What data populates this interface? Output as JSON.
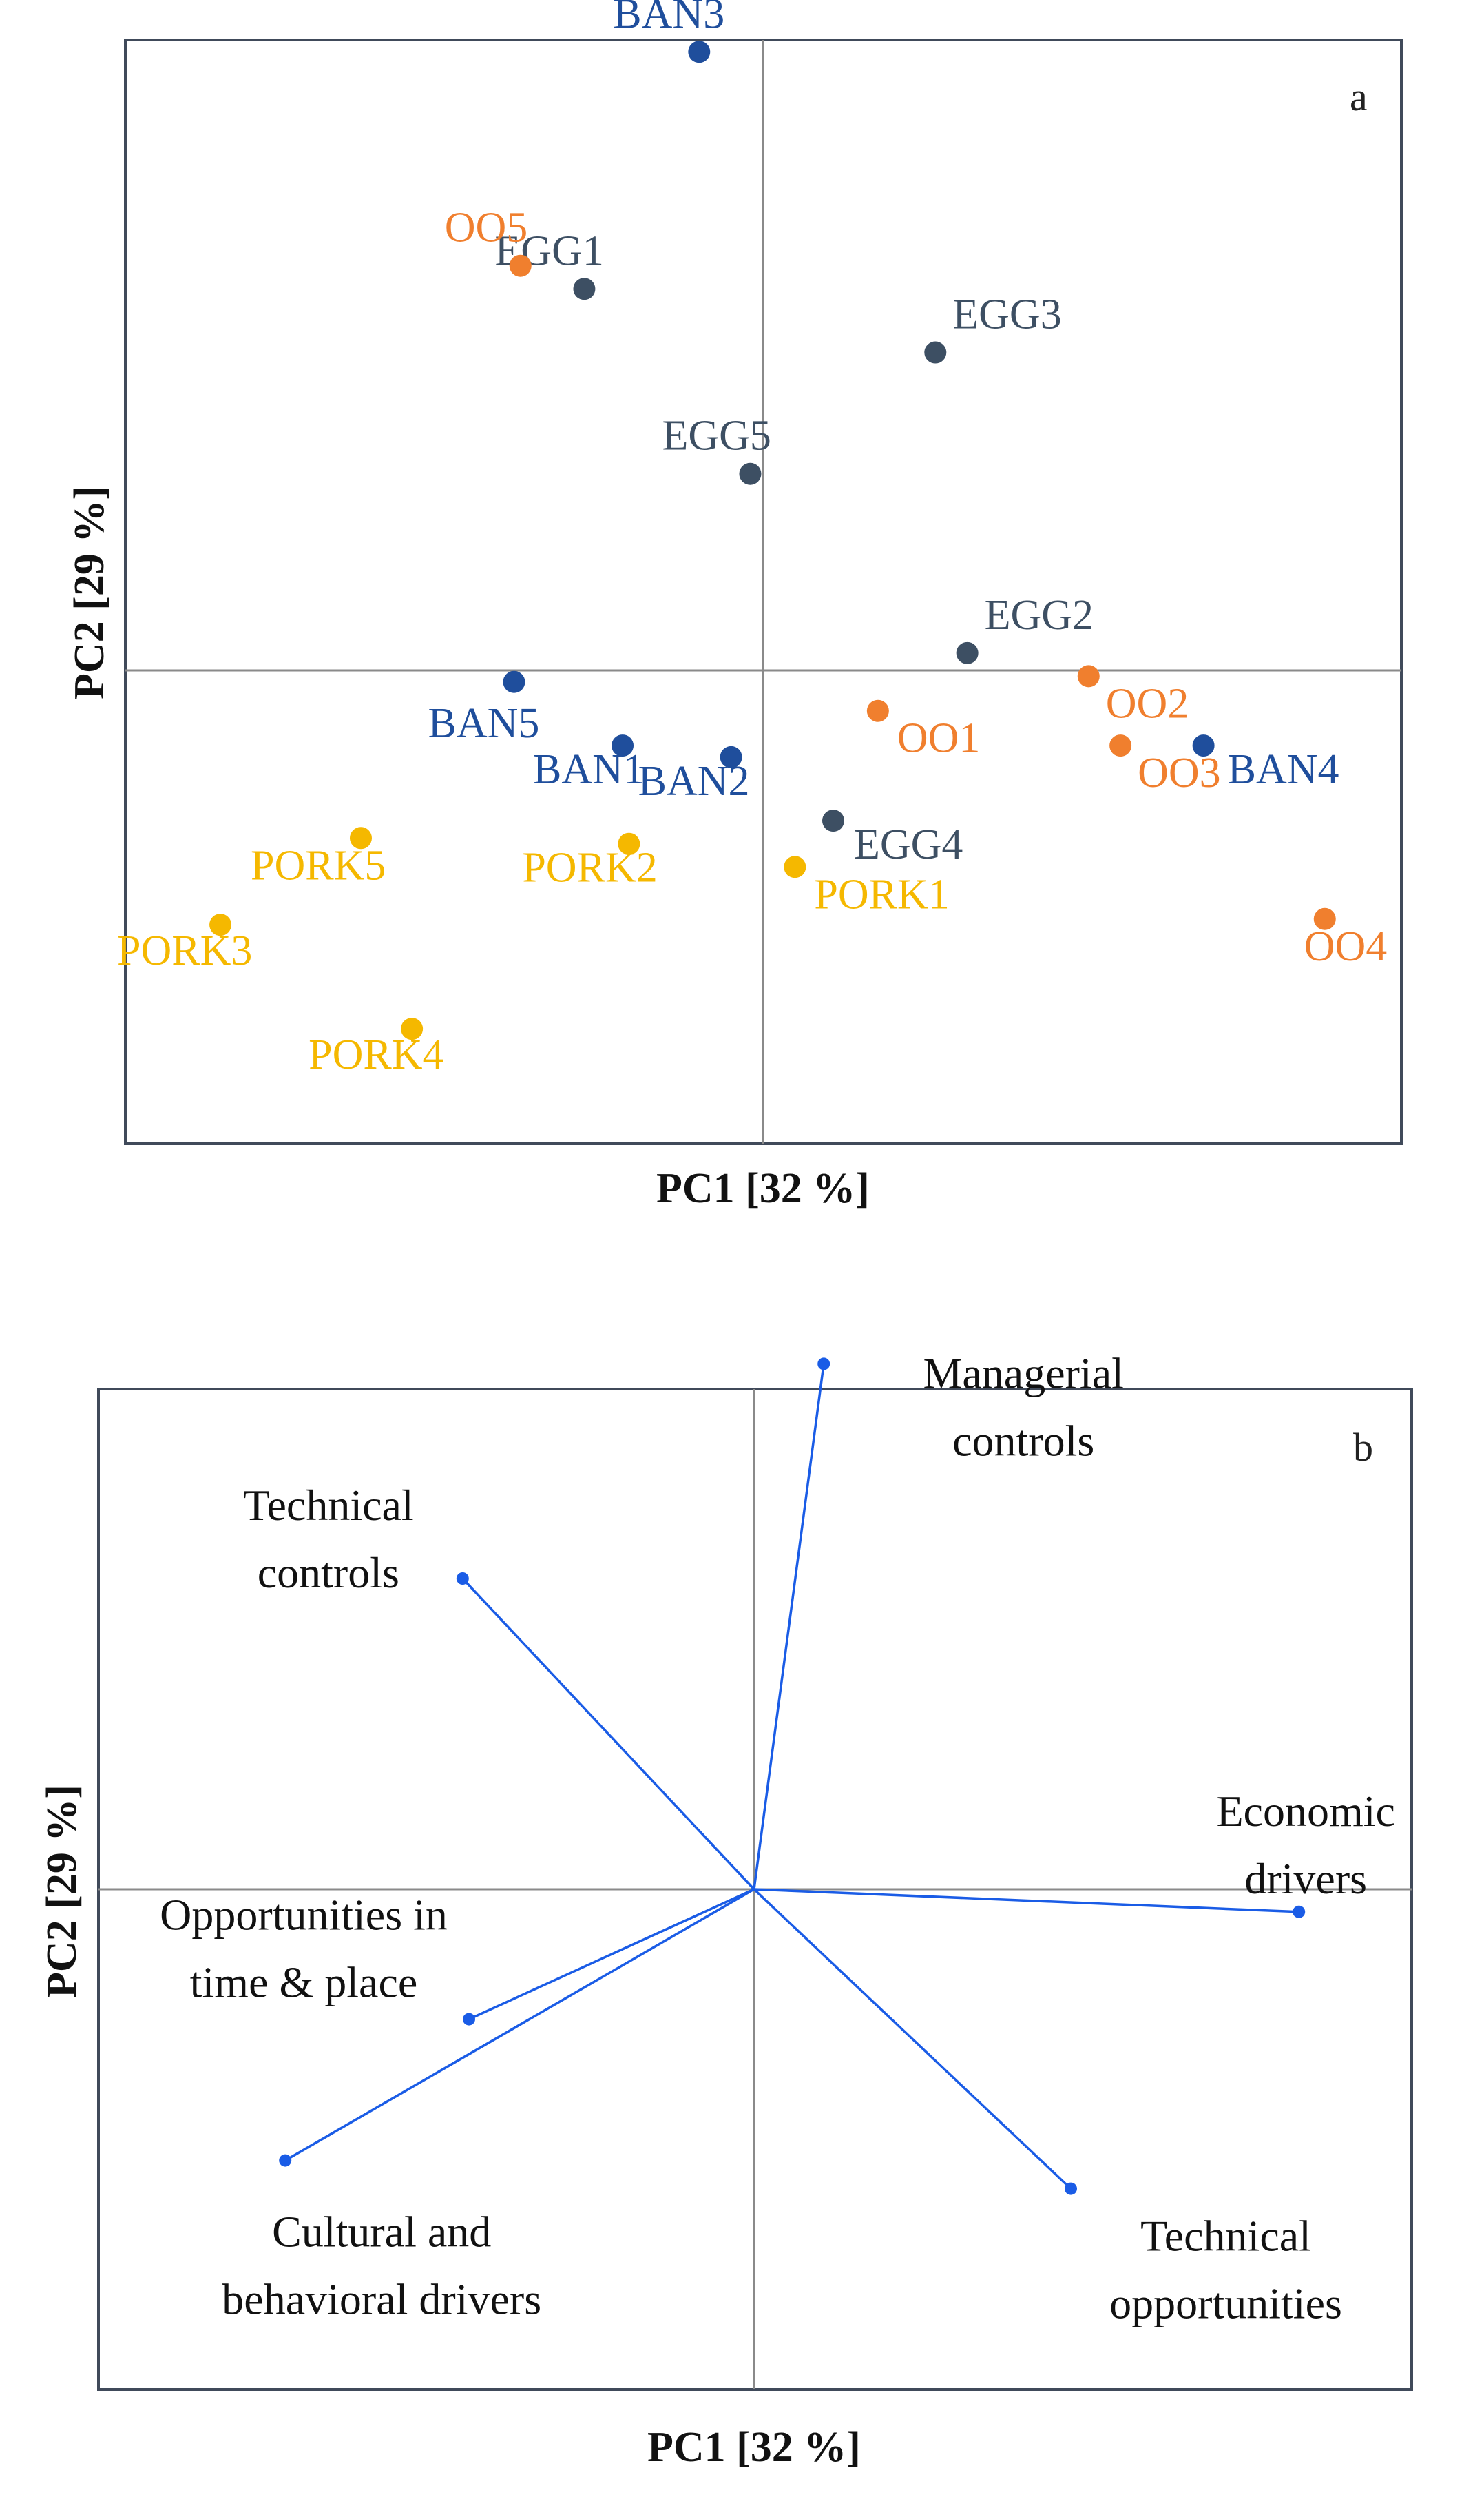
{
  "chart_data": [
    {
      "type": "scatter",
      "panel_label": "a",
      "xlabel": "PC1 [32 %]",
      "ylabel": "PC2 [29 %]",
      "xlim": [
        -1.0,
        1.0
      ],
      "ylim": [
        -1.0,
        1.0
      ],
      "grid": false,
      "axes_at_origin": true,
      "colors": {
        "BAN": "#1f4e9c",
        "EGG": "#3d4f63",
        "OO": "#f07f2e",
        "PORK": "#f5b800"
      },
      "points": [
        {
          "label": "BAN3",
          "group": "BAN",
          "x": -0.1,
          "y": 1.07
        },
        {
          "label": "BAN5",
          "group": "BAN",
          "x": -0.39,
          "y": -0.02
        },
        {
          "label": "BAN1",
          "group": "BAN",
          "x": -0.22,
          "y": -0.13
        },
        {
          "label": "BAN2",
          "group": "BAN",
          "x": -0.05,
          "y": -0.15
        },
        {
          "label": "BAN4",
          "group": "BAN",
          "x": 0.69,
          "y": -0.13
        },
        {
          "label": "EGG1",
          "group": "EGG",
          "x": -0.28,
          "y": 0.66
        },
        {
          "label": "EGG3",
          "group": "EGG",
          "x": 0.27,
          "y": 0.55
        },
        {
          "label": "EGG5",
          "group": "EGG",
          "x": -0.02,
          "y": 0.34
        },
        {
          "label": "EGG2",
          "group": "EGG",
          "x": 0.32,
          "y": 0.03
        },
        {
          "label": "EGG4",
          "group": "EGG",
          "x": 0.11,
          "y": -0.26
        },
        {
          "label": "OO5",
          "group": "OO",
          "x": -0.38,
          "y": 0.7
        },
        {
          "label": "OO1",
          "group": "OO",
          "x": 0.18,
          "y": -0.07
        },
        {
          "label": "OO2",
          "group": "OO",
          "x": 0.51,
          "y": -0.01
        },
        {
          "label": "OO3",
          "group": "OO",
          "x": 0.56,
          "y": -0.13
        },
        {
          "label": "OO4",
          "group": "OO",
          "x": 0.88,
          "y": -0.43
        },
        {
          "label": "PORK5",
          "group": "PORK",
          "x": -0.63,
          "y": -0.29
        },
        {
          "label": "PORK2",
          "group": "PORK",
          "x": -0.21,
          "y": -0.3
        },
        {
          "label": "PORK1",
          "group": "PORK",
          "x": 0.05,
          "y": -0.34
        },
        {
          "label": "PORK3",
          "group": "PORK",
          "x": -0.85,
          "y": -0.44
        },
        {
          "label": "PORK4",
          "group": "PORK",
          "x": -0.55,
          "y": -0.62
        }
      ]
    },
    {
      "type": "biplot",
      "panel_label": "b",
      "xlabel": "PC1 [32 %]",
      "ylabel": "PC2 [29 %]",
      "xlim": [
        -1.0,
        1.0
      ],
      "ylim": [
        -1.0,
        1.0
      ],
      "grid": false,
      "axes_at_origin": true,
      "vector_color": "#1a5ce6",
      "vectors": [
        {
          "label": [
            "Managerial",
            "controls"
          ],
          "x": 0.11,
          "y": 0.93
        },
        {
          "label": [
            "Technical",
            "controls"
          ],
          "x": -0.46,
          "y": 0.55
        },
        {
          "label": [
            "Economic",
            "drivers"
          ],
          "x": 0.86,
          "y": -0.04
        },
        {
          "label": [
            "Opportunities in",
            "time & place"
          ],
          "x": -0.45,
          "y": -0.23
        },
        {
          "label": [
            "Cultural and",
            "behavioral drivers"
          ],
          "x": -0.74,
          "y": -0.48
        },
        {
          "label": [
            "Technical",
            "opportunities"
          ],
          "x": 0.5,
          "y": -0.53
        }
      ]
    }
  ]
}
